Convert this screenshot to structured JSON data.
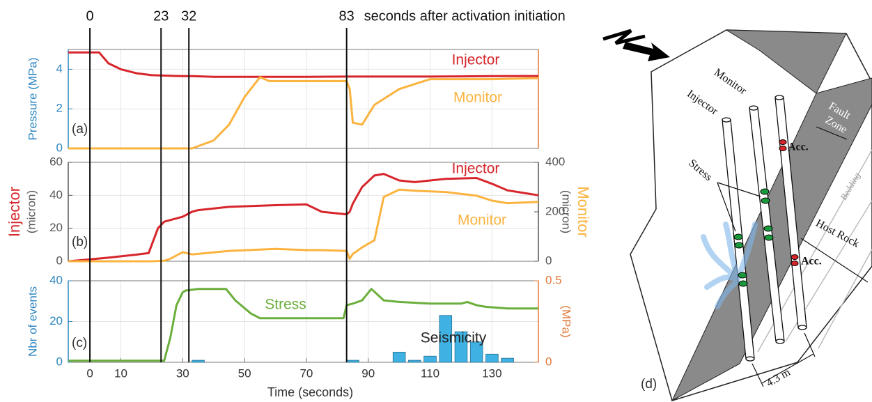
{
  "events": {
    "times": [
      0,
      23,
      32,
      83
    ],
    "caption": "seconds after activation initiation"
  },
  "chart_data": [
    {
      "type": "line",
      "panel": "(a)",
      "ylabel": "Pressure (MPa)",
      "axis_color": "#2e86c1",
      "axis2_color": "#e2793a",
      "grid": true,
      "xlim": [
        -7,
        145
      ],
      "ylim": [
        0,
        5
      ],
      "yticks": [
        0,
        2,
        4
      ],
      "x": [
        -7,
        3,
        6,
        10,
        15,
        20,
        30,
        33,
        40,
        45,
        50,
        55,
        58,
        70,
        83,
        84,
        85,
        88,
        92,
        100,
        110,
        120,
        130,
        145
      ],
      "series": [
        {
          "name": "Injector",
          "color": "#d7262b",
          "values": [
            4.85,
            4.85,
            4.3,
            4.0,
            3.8,
            3.7,
            3.65,
            3.65,
            3.62,
            3.62,
            3.62,
            3.62,
            3.62,
            3.62,
            3.63,
            3.63,
            3.63,
            3.63,
            3.63,
            3.63,
            3.63,
            3.64,
            3.65,
            3.66
          ]
        },
        {
          "name": "Monitor",
          "color": "#fbb33f",
          "values": [
            0,
            0,
            0,
            0,
            0,
            0,
            0,
            0,
            0.4,
            1.2,
            2.6,
            3.6,
            3.4,
            3.4,
            3.4,
            3.0,
            1.3,
            1.2,
            2.2,
            3.0,
            3.5,
            3.5,
            3.5,
            3.55
          ]
        }
      ]
    },
    {
      "type": "line",
      "panel": "(b)",
      "ylabel": [
        "Injector",
        "(micron)"
      ],
      "ylabel_colors": [
        "#d7262b",
        "#555555"
      ],
      "y2label": [
        "(micron)",
        "Monitor"
      ],
      "y2label_colors": [
        "#555555",
        "#fbb33f"
      ],
      "axis_color": "#555555",
      "axis2_color": "#555555",
      "grid": true,
      "xlim": [
        -7,
        145
      ],
      "ylim": [
        0,
        60
      ],
      "yticks": [
        0,
        20,
        40,
        60
      ],
      "y2lim": [
        0,
        400
      ],
      "y2ticks": [
        0,
        200,
        400
      ],
      "x": [
        -7,
        5,
        15,
        19,
        20,
        22,
        24,
        26,
        30,
        33,
        35,
        45,
        60,
        70,
        75,
        83,
        84,
        85,
        88,
        92,
        95,
        100,
        105,
        115,
        125,
        130,
        135,
        145
      ],
      "series": [
        {
          "name": "Injector",
          "color": "#d7262b",
          "values": [
            0,
            2,
            4,
            5,
            10,
            20,
            24,
            25,
            27,
            30,
            31,
            33,
            34,
            34.5,
            30,
            28.5,
            30,
            35,
            45,
            52,
            53,
            49,
            48,
            50,
            50.5,
            47,
            43,
            40
          ]
        },
        {
          "name": "Monitor",
          "color": "#fbb33f",
          "axis": "y2",
          "values": [
            0,
            0,
            0,
            0,
            0,
            1,
            2,
            10,
            37,
            28,
            30,
            42,
            50,
            45,
            45,
            42,
            10,
            30,
            56,
            85,
            260,
            290,
            285,
            280,
            265,
            245,
            235,
            240
          ]
        }
      ]
    },
    {
      "type": "line",
      "panel": "(c)",
      "ylabel": "Nbr of events",
      "y2label": "(MPa)",
      "axis_color": "#2e86c1",
      "axis2_color": "#e2793a",
      "grid": true,
      "xlabel": "Time (seconds)",
      "xlim": [
        -7,
        145
      ],
      "xticks": [
        0,
        10,
        30,
        50,
        70,
        90,
        110,
        130
      ],
      "ylim": [
        0,
        40
      ],
      "yticks": [
        0,
        20,
        40
      ],
      "y2lim": [
        0,
        0.5
      ],
      "y2ticks": [
        0,
        0.5
      ],
      "series": [
        {
          "name": "Stress",
          "color": "#6aae3c",
          "axis": "y2",
          "x": [
            -7,
            24,
            26,
            28,
            30,
            31,
            35,
            40,
            44,
            47,
            52,
            55,
            70,
            82,
            83,
            85,
            88,
            91,
            95,
            100,
            110,
            120,
            122,
            125,
            128,
            135,
            145
          ],
          "values": [
            0.01,
            0.01,
            0.15,
            0.35,
            0.43,
            0.44,
            0.45,
            0.45,
            0.45,
            0.38,
            0.3,
            0.27,
            0.27,
            0.27,
            0.35,
            0.36,
            0.38,
            0.45,
            0.38,
            0.37,
            0.36,
            0.36,
            0.37,
            0.35,
            0.34,
            0.33,
            0.33
          ]
        },
        {
          "name": "Seismicity",
          "type": "bar",
          "color": "#3fb2e3",
          "x": [
            35,
            85,
            100,
            105,
            110,
            115,
            120,
            125,
            130,
            135
          ],
          "values": [
            1,
            1,
            5,
            1,
            3,
            23,
            15,
            10,
            4,
            2
          ]
        }
      ]
    }
  ],
  "diagram": {
    "panel": "(d)",
    "boreholes": [
      "Monitor",
      "Injector"
    ],
    "fault": [
      "Fault",
      "Zone"
    ],
    "sensors": [
      "Acc.",
      "Acc."
    ],
    "stress": "Stress",
    "bedding": "Bedding",
    "host_rock": "Host Rock",
    "spacing": "4.3 m"
  }
}
